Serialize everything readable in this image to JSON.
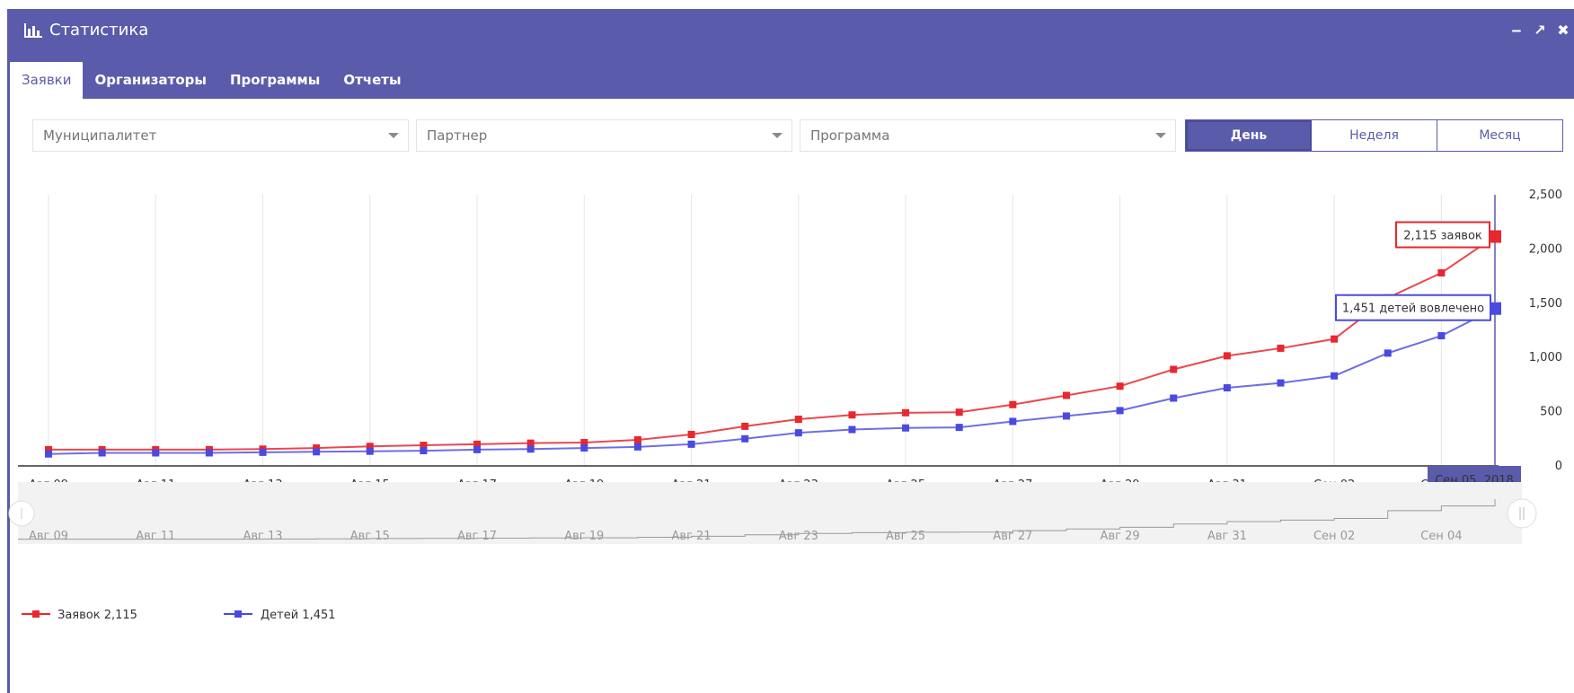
{
  "window": {
    "title": "Статистика",
    "controls": [
      "minimize-icon",
      "compress-icon",
      "close-icon"
    ]
  },
  "tabs": [
    {
      "label": "Заявки",
      "active": true
    },
    {
      "label": "Организаторы",
      "active": false
    },
    {
      "label": "Программы",
      "active": false
    },
    {
      "label": "Отчеты",
      "active": false
    }
  ],
  "filters": {
    "municipality": {
      "placeholder": "Муниципалитет"
    },
    "partner": {
      "placeholder": "Партнер"
    },
    "program": {
      "placeholder": "Программа"
    }
  },
  "period": {
    "day": "День",
    "week": "Неделя",
    "month": "Месяц",
    "selected": "День"
  },
  "colors": {
    "header": "#5b5bab",
    "series_requests": "#e8272f",
    "series_children": "#4a4ae0",
    "tooltip_date_bg": "#5b5bab"
  },
  "chart_data": {
    "type": "line",
    "x": [
      "Авг 09",
      "Авг 10",
      "Авг 11",
      "Авг 12",
      "Авг 13",
      "Авг 14",
      "Авг 15",
      "Авг 16",
      "Авг 17",
      "Авг 18",
      "Авг 19",
      "Авг 20",
      "Авг 21",
      "Авг 22",
      "Авг 23",
      "Авг 24",
      "Авг 25",
      "Авг 26",
      "Авг 27",
      "Авг 28",
      "Авг 29",
      "Авг 30",
      "Авг 31",
      "Сен 01",
      "Сен 02",
      "Сен 03",
      "Сен 04",
      "Сен 05"
    ],
    "x_tick_labels": [
      "Авг 09",
      "Авг 11",
      "Авг 13",
      "Авг 15",
      "Авг 17",
      "Авг 19",
      "Авг 21",
      "Авг 23",
      "Авг 25",
      "Авг 27",
      "Авг 29",
      "Авг 31",
      "Сен 02",
      "Сен 04"
    ],
    "navigator_tick_labels": [
      "Авг 09",
      "Авг 11",
      "Авг 13",
      "Авг 15",
      "Авг 17",
      "Авг 19",
      "Авг 21",
      "Авг 23",
      "Авг 25",
      "Авг 27",
      "Авг 29",
      "Авг 31",
      "Сен 02",
      "Сен 04"
    ],
    "y_ticks": [
      "2,500",
      "2,000",
      "1,500",
      "1,000",
      "500",
      "0"
    ],
    "ylim": [
      0,
      2500
    ],
    "series": [
      {
        "name": "Заявок",
        "values": [
          150,
          150,
          150,
          150,
          155,
          165,
          180,
          190,
          200,
          210,
          215,
          240,
          290,
          365,
          430,
          470,
          490,
          495,
          565,
          650,
          735,
          890,
          1015,
          1085,
          1170,
          1550,
          1780,
          2115
        ]
      },
      {
        "name": "Детей",
        "values": [
          110,
          120,
          120,
          120,
          125,
          130,
          135,
          140,
          150,
          155,
          165,
          175,
          200,
          250,
          305,
          335,
          350,
          355,
          410,
          460,
          510,
          625,
          720,
          765,
          830,
          1040,
          1200,
          1451
        ]
      }
    ],
    "grid": true,
    "legend_position": "bottom-left",
    "legend": [
      {
        "label": "Заявок 2,115"
      },
      {
        "label": "Детей 1,451"
      }
    ],
    "tooltips": {
      "requests": "2,115 заявок",
      "children": "1,451 детей вовлечено",
      "date": "Сен 05, 2018"
    }
  }
}
